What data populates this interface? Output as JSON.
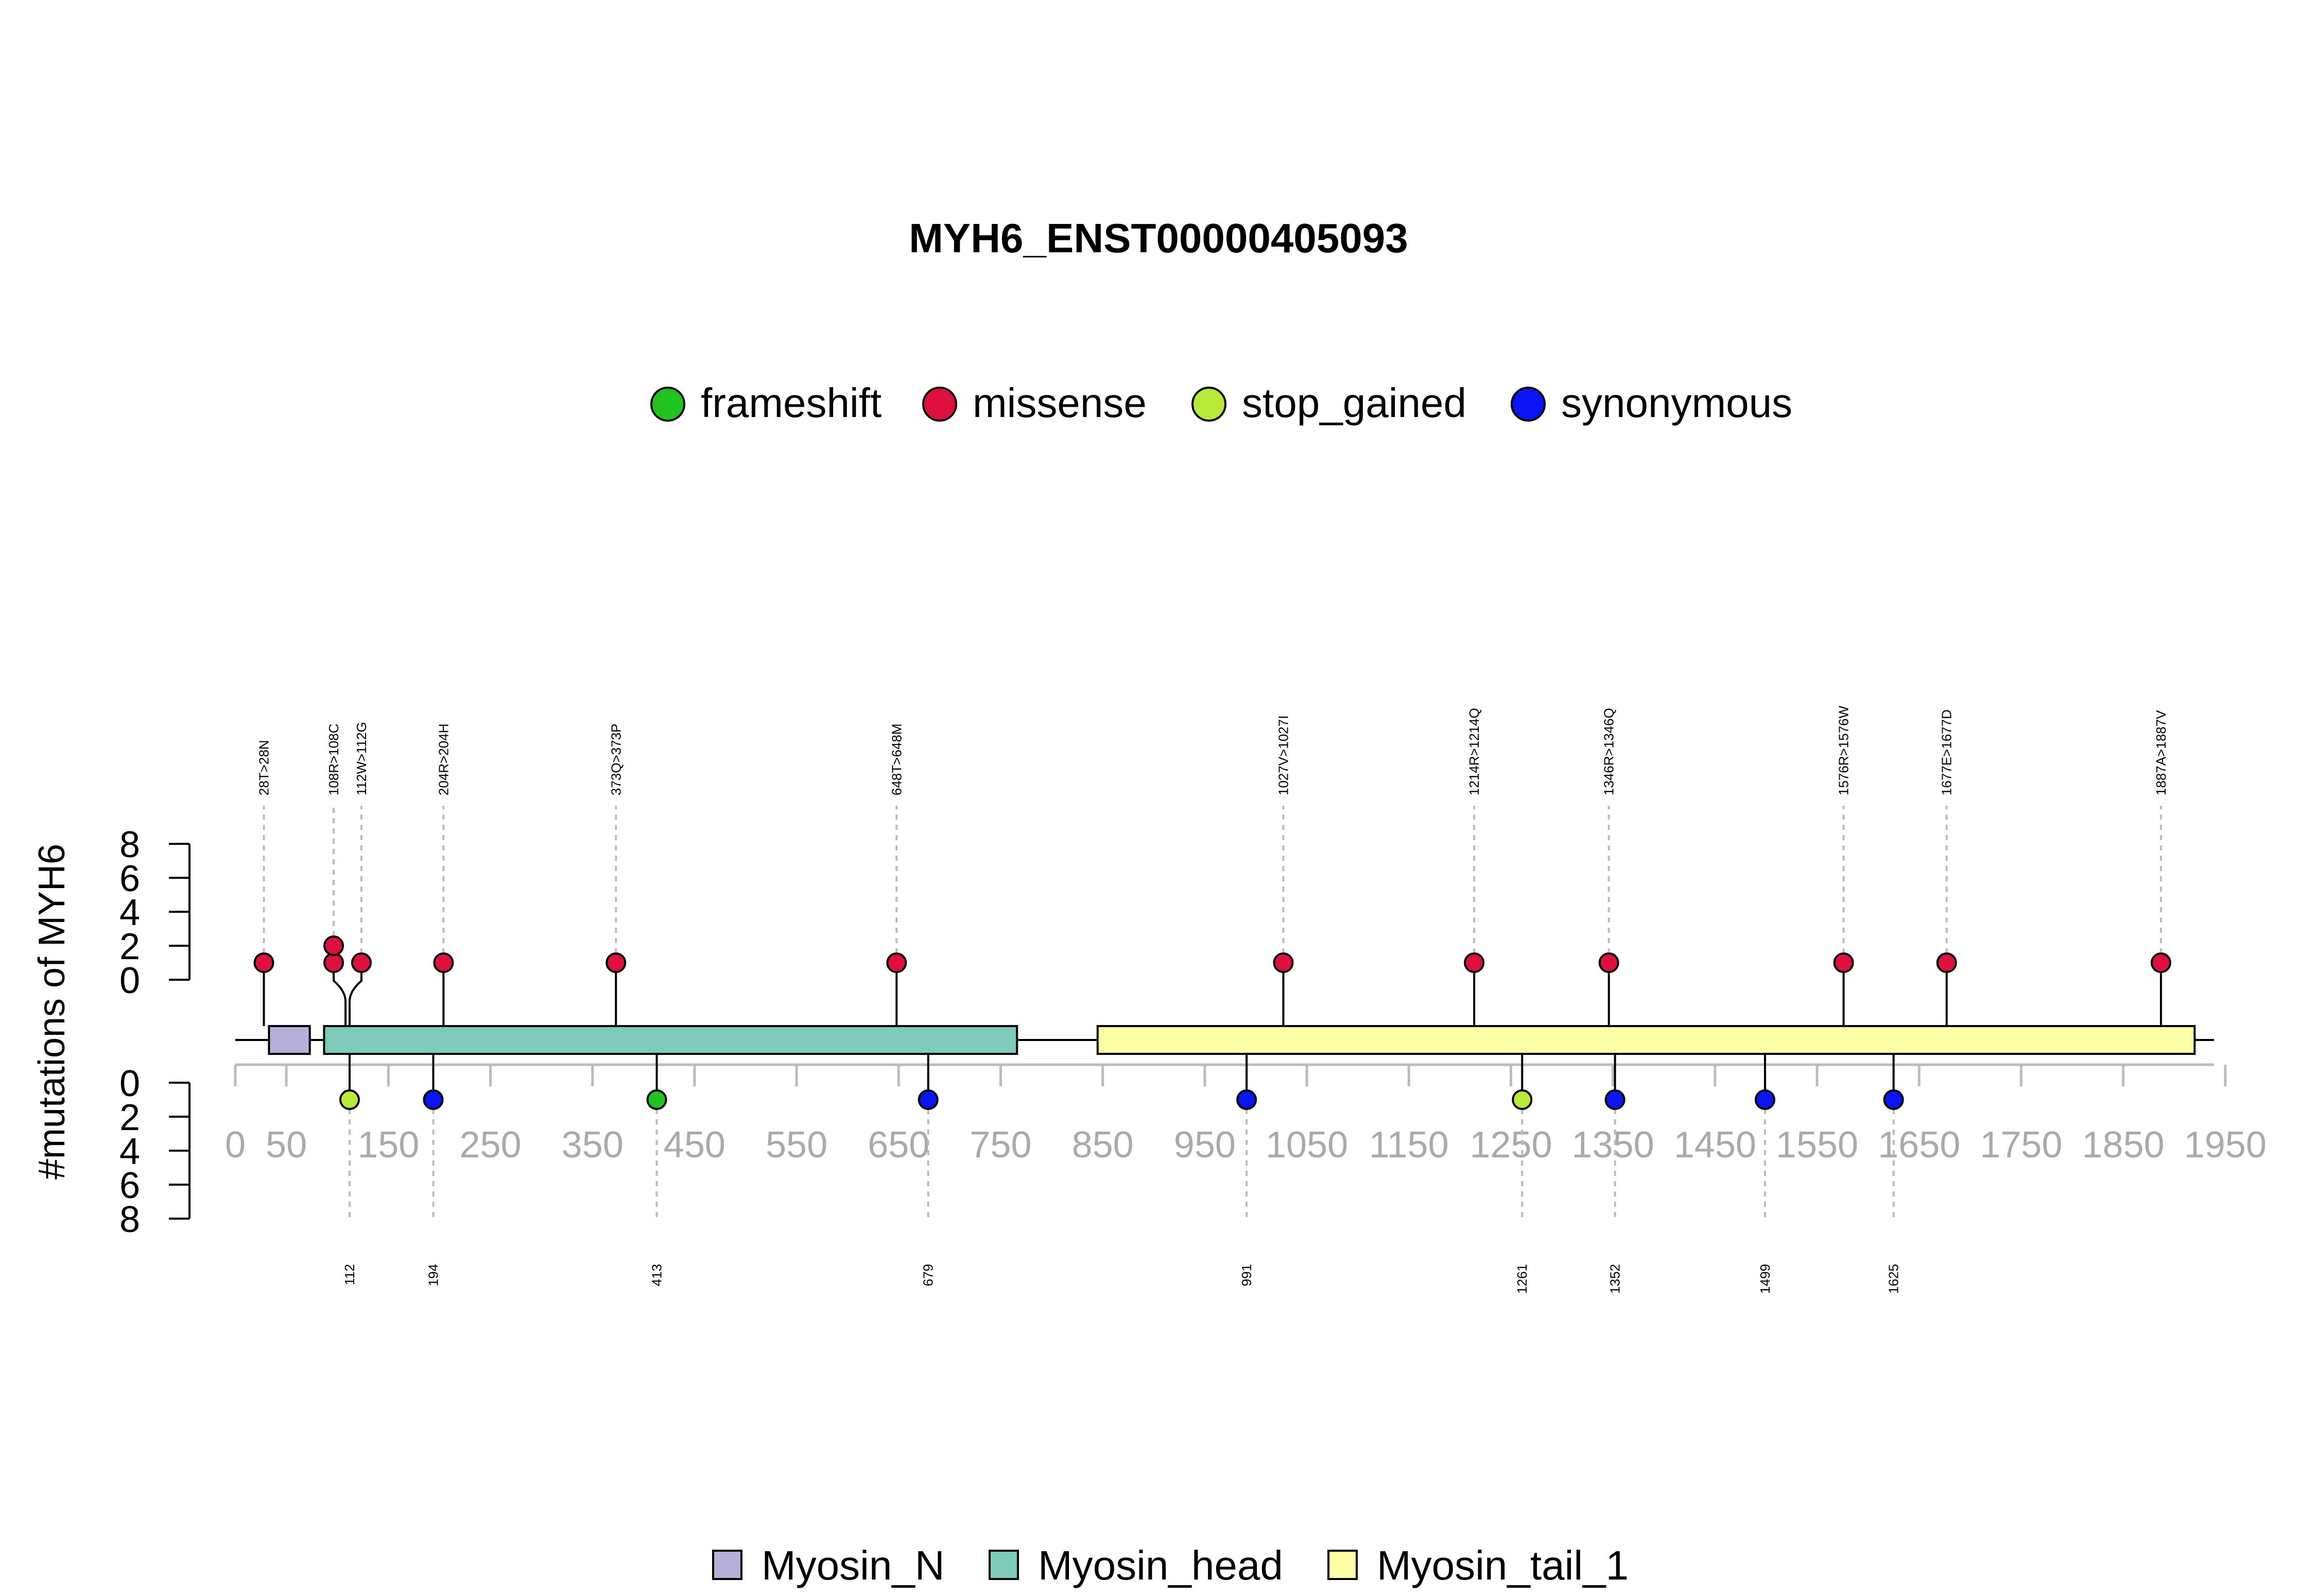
{
  "chart_data": {
    "type": "lollipop",
    "title": "MYH6_ENST00000405093",
    "ylabel": "#mutations of MYH6",
    "protein_length": 1939,
    "xlim": [
      0,
      1939
    ],
    "x_ticks": [
      0,
      50,
      150,
      250,
      350,
      450,
      550,
      650,
      750,
      850,
      950,
      1050,
      1150,
      1250,
      1350,
      1450,
      1550,
      1650,
      1750,
      1850,
      1950
    ],
    "y_ticks": [
      0,
      2,
      4,
      6,
      8
    ],
    "y_range": [
      0,
      8
    ],
    "mutation_types": [
      {
        "name": "frameshift",
        "color": "#1fc41f"
      },
      {
        "name": "missense",
        "color": "#e0103e"
      },
      {
        "name": "stop_gained",
        "color": "#b8ea3a"
      },
      {
        "name": "synonymous",
        "color": "#0a14f5"
      }
    ],
    "domains": [
      {
        "name": "Myosin_N",
        "start": 33,
        "end": 73,
        "color": "#b5b0d7"
      },
      {
        "name": "Myosin_head",
        "start": 87,
        "end": 766,
        "color": "#7ecbba"
      },
      {
        "name": "Myosin_tail_1",
        "start": 845,
        "end": 1920,
        "color": "#ffffa8"
      }
    ],
    "top_mutations": [
      {
        "pos": 28,
        "label": "28T>28N",
        "count": 1,
        "type": "missense"
      },
      {
        "pos": 108,
        "label": "108R>108C",
        "count": 2,
        "type": "missense"
      },
      {
        "pos": 112,
        "label": "112W>112G",
        "count": 1,
        "type": "missense"
      },
      {
        "pos": 204,
        "label": "204R>204H",
        "count": 1,
        "type": "missense"
      },
      {
        "pos": 373,
        "label": "373Q>373P",
        "count": 1,
        "type": "missense"
      },
      {
        "pos": 648,
        "label": "648T>648M",
        "count": 1,
        "type": "missense"
      },
      {
        "pos": 1027,
        "label": "1027V>1027I",
        "count": 1,
        "type": "missense"
      },
      {
        "pos": 1214,
        "label": "1214R>1214Q",
        "count": 1,
        "type": "missense"
      },
      {
        "pos": 1346,
        "label": "1346R>1346Q",
        "count": 1,
        "type": "missense"
      },
      {
        "pos": 1576,
        "label": "1576R>1576W",
        "count": 1,
        "type": "missense"
      },
      {
        "pos": 1677,
        "label": "1677E>1677D",
        "count": 1,
        "type": "missense"
      },
      {
        "pos": 1887,
        "label": "1887A>1887V",
        "count": 1,
        "type": "missense"
      }
    ],
    "bottom_mutations": [
      {
        "pos": 112,
        "label": "112",
        "count": 1,
        "type": "stop_gained"
      },
      {
        "pos": 194,
        "label": "194",
        "count": 1,
        "type": "synonymous"
      },
      {
        "pos": 413,
        "label": "413",
        "count": 1,
        "type": "frameshift"
      },
      {
        "pos": 679,
        "label": "679",
        "count": 1,
        "type": "synonymous"
      },
      {
        "pos": 991,
        "label": "991",
        "count": 1,
        "type": "synonymous"
      },
      {
        "pos": 1261,
        "label": "1261",
        "count": 1,
        "type": "stop_gained"
      },
      {
        "pos": 1352,
        "label": "1352",
        "count": 1,
        "type": "synonymous"
      },
      {
        "pos": 1499,
        "label": "1499",
        "count": 1,
        "type": "synonymous"
      },
      {
        "pos": 1625,
        "label": "1625",
        "count": 1,
        "type": "synonymous"
      }
    ]
  }
}
